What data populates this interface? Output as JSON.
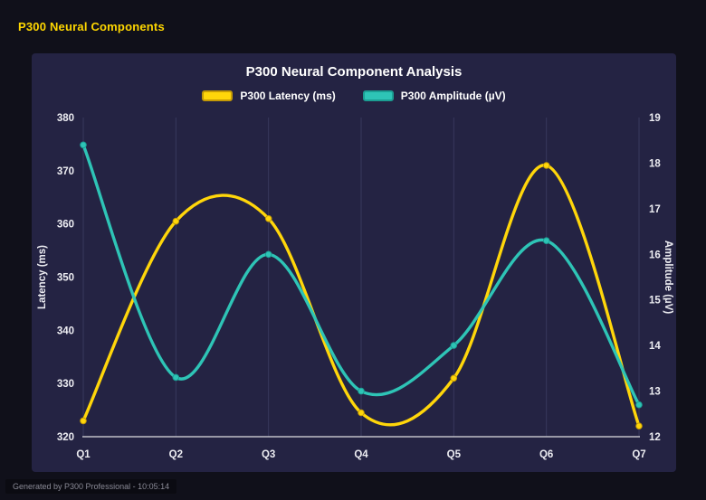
{
  "header": {
    "title": "P300 Neural Components"
  },
  "footer": {
    "caption": "Generated by P300 Professional - 10:05:14"
  },
  "colors": {
    "page_bg": "#10101a",
    "panel_bg": "#242343",
    "grid": "#38385c",
    "axis": "#c0c0c8",
    "tick_text": "#ededf2",
    "title_text": "#ffffff",
    "header_text": "#ffd700",
    "caption_text": "#8a8a96",
    "accent_yellow": "#FFD60A",
    "accent_teal": "#2EC4B6"
  },
  "chart_data": {
    "type": "line",
    "title": "P300 Neural Component Analysis",
    "categories": [
      "Q1",
      "Q2",
      "Q3",
      "Q4",
      "Q5",
      "Q6",
      "Q7"
    ],
    "series": [
      {
        "name": "P300 Latency (ms)",
        "axis": "left",
        "color": "#FFD60A",
        "edge": "#C49A06",
        "values": [
          323,
          360.5,
          361,
          324.5,
          331,
          371,
          322
        ]
      },
      {
        "name": "P300 Amplitude (µV)",
        "axis": "right",
        "color": "#2EC4B6",
        "edge": "#1B9E93",
        "values": [
          18.4,
          13.3,
          16.0,
          13.0,
          14.0,
          16.3,
          12.7
        ]
      }
    ],
    "left_axis": {
      "label": "Latency (ms)",
      "min": 320,
      "max": 380,
      "step": 10
    },
    "right_axis": {
      "label": "Amplitude (µV)",
      "min": 12,
      "max": 19,
      "step": 1
    },
    "grid": "vertical",
    "legend_position": "top",
    "curve": "smooth-spline"
  }
}
